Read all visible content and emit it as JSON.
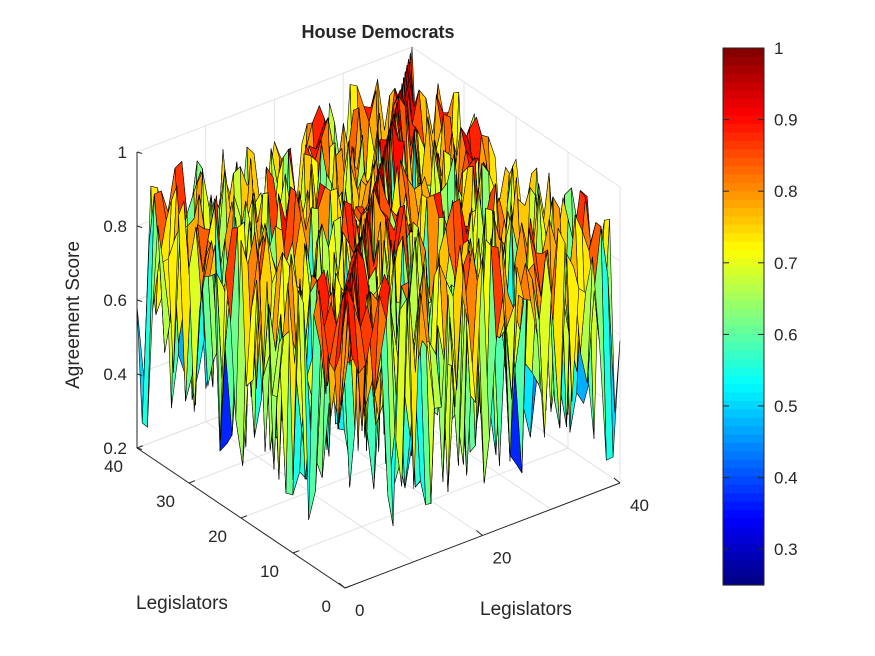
{
  "chart_data": {
    "type": "surface3d",
    "title": "House Democrats",
    "xlabel": "Legislators",
    "ylabel": "Legislators",
    "zlabel": "Agreement Score",
    "n_legislators": 41,
    "x_range": [
      0,
      40
    ],
    "y_range": [
      0,
      40
    ],
    "z_range": [
      0.2,
      1
    ],
    "x_ticks": [
      "0",
      "20",
      "40"
    ],
    "y_ticks": [
      "0",
      "10",
      "20",
      "30",
      "40"
    ],
    "z_ticks": [
      "0.2",
      "0.4",
      "0.6",
      "0.8",
      "1"
    ],
    "grid": true,
    "colormap": "jet",
    "colorbar": {
      "range": [
        0.25,
        1
      ],
      "ticks": [
        "0.3",
        "0.4",
        "0.5",
        "0.6",
        "0.7",
        "0.8",
        "0.9",
        "1"
      ],
      "placement": "right"
    },
    "data_note_min": 0.25,
    "data_note_max": 1
  }
}
